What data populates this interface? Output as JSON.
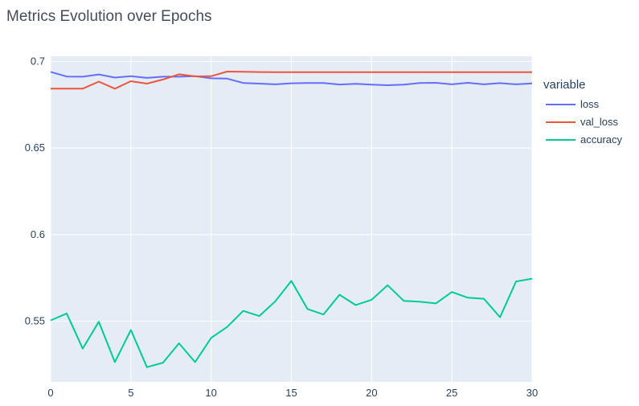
{
  "chart_data": {
    "type": "line",
    "title": "Metrics Evolution over Epochs",
    "xlabel": "",
    "ylabel": "",
    "xlim": [
      0,
      30
    ],
    "ylim": [
      0.515,
      0.703
    ],
    "x_ticks": [
      0,
      5,
      10,
      15,
      20,
      25,
      30
    ],
    "y_ticks": [
      0.55,
      0.6,
      0.65,
      0.7
    ],
    "y_tick_labels": [
      "0.55",
      "0.6",
      "0.65",
      "0.7"
    ],
    "grid": true,
    "legend_title": "variable",
    "legend_position": "top-right",
    "x": [
      0,
      1,
      2,
      3,
      4,
      5,
      6,
      7,
      8,
      9,
      10,
      11,
      12,
      13,
      14,
      15,
      16,
      17,
      18,
      19,
      20,
      21,
      22,
      23,
      24,
      25,
      26,
      27,
      28,
      29,
      30
    ],
    "series": [
      {
        "name": "loss",
        "color": "#636efa",
        "values": [
          0.694,
          0.6913,
          0.6912,
          0.6925,
          0.6907,
          0.6915,
          0.6905,
          0.6912,
          0.6912,
          0.6915,
          0.6903,
          0.6901,
          0.6876,
          0.6872,
          0.6868,
          0.6874,
          0.6876,
          0.6876,
          0.6867,
          0.6871,
          0.6866,
          0.6863,
          0.6866,
          0.6876,
          0.6877,
          0.6868,
          0.6877,
          0.6868,
          0.6875,
          0.6868,
          0.6873
        ]
      },
      {
        "name": "val_loss",
        "color": "#ef553b",
        "values": [
          0.6843,
          0.6843,
          0.6843,
          0.6884,
          0.6843,
          0.6886,
          0.6872,
          0.6896,
          0.6926,
          0.6914,
          0.6915,
          0.6942,
          0.6941,
          0.6939,
          0.6938,
          0.6938,
          0.6938,
          0.6938,
          0.6938,
          0.6938,
          0.6938,
          0.6938,
          0.6938,
          0.6938,
          0.6938,
          0.6938,
          0.6938,
          0.6938,
          0.6938,
          0.6938,
          0.6938
        ]
      },
      {
        "name": "accuracy",
        "color": "#00cc96",
        "values": [
          0.5505,
          0.5545,
          0.5342,
          0.5497,
          0.5264,
          0.545,
          0.5235,
          0.5261,
          0.5373,
          0.5264,
          0.5404,
          0.5467,
          0.556,
          0.553,
          0.5615,
          0.5733,
          0.5571,
          0.5539,
          0.5653,
          0.5594,
          0.5624,
          0.5708,
          0.5618,
          0.5613,
          0.5603,
          0.5669,
          0.5636,
          0.563,
          0.5523,
          0.573,
          0.5746
        ]
      }
    ]
  },
  "colors": {
    "plot_bg": "#e5ecf6",
    "grid": "#ffffff",
    "text": "#2a3f5f"
  }
}
